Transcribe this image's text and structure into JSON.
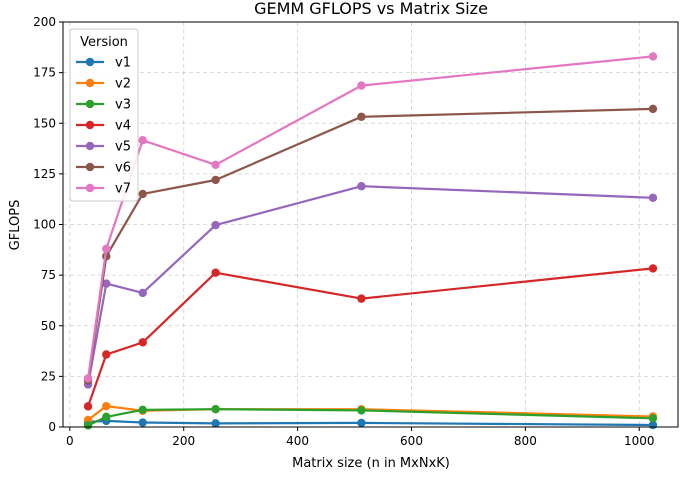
{
  "chart_data": {
    "type": "line",
    "title": "GEMM GFLOPS vs Matrix Size",
    "xlabel": "Matrix size (n in MxNxK)",
    "ylabel": "GFLOPS",
    "xlim": [
      -12,
      1068
    ],
    "ylim": [
      0,
      200
    ],
    "xticks": [
      0,
      200,
      400,
      600,
      800,
      1000
    ],
    "yticks": [
      0,
      25,
      50,
      75,
      100,
      125,
      150,
      175,
      200
    ],
    "grid": true,
    "legend": {
      "title": "Version",
      "position": "top-left"
    },
    "x": [
      32,
      64,
      128,
      256,
      512,
      1024
    ],
    "series": [
      {
        "name": "v1",
        "color": "#1f77b4",
        "values": [
          2.5,
          3.0,
          2.2,
          1.8,
          2.0,
          1.0
        ]
      },
      {
        "name": "v2",
        "color": "#ff7f0e",
        "values": [
          3.5,
          10.3,
          8.0,
          8.8,
          8.8,
          5.2
        ]
      },
      {
        "name": "v3",
        "color": "#2ca02c",
        "values": [
          0.8,
          5.0,
          8.5,
          8.8,
          8.2,
          4.3
        ]
      },
      {
        "name": "v4",
        "color": "#d62728",
        "values": [
          10.2,
          35.8,
          41.8,
          76.2,
          63.4,
          78.3
        ]
      },
      {
        "name": "v5",
        "color": "#9467bd",
        "values": [
          21.0,
          70.8,
          66.2,
          99.7,
          118.9,
          113.2
        ]
      },
      {
        "name": "v6",
        "color": "#8c564b",
        "values": [
          23.0,
          84.3,
          115.1,
          122.0,
          153.2,
          157.1
        ]
      },
      {
        "name": "v7",
        "color": "#e377c2",
        "values": [
          24.0,
          88.0,
          141.6,
          129.5,
          168.6,
          183.0
        ]
      }
    ]
  }
}
